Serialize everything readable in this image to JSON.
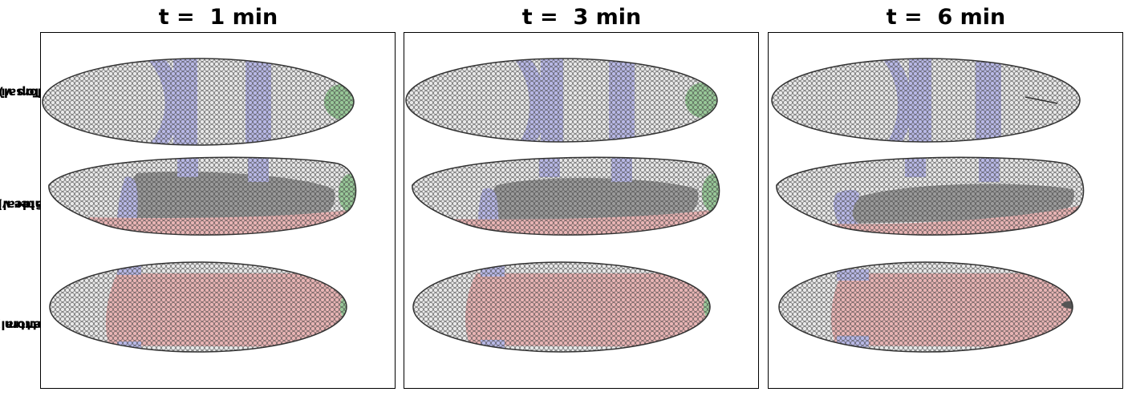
{
  "titles": [
    "t =  1 min",
    "t =  3 min",
    "t =  6 min"
  ],
  "row_labels": [
    [
      "Top view",
      "(dorsal)"
    ],
    [
      "Side view",
      "(lateral)"
    ],
    [
      "Bottom view",
      "(ventral)"
    ]
  ],
  "colors": {
    "background_cells": "#e8e8e8",
    "stripe_cells": "#b8b8e6",
    "pole_cells": "#98c898",
    "lateral_dark_cells": "#9a9a9a",
    "ventral_cells": "#e8b4b4",
    "cell_edges": "#444444"
  }
}
